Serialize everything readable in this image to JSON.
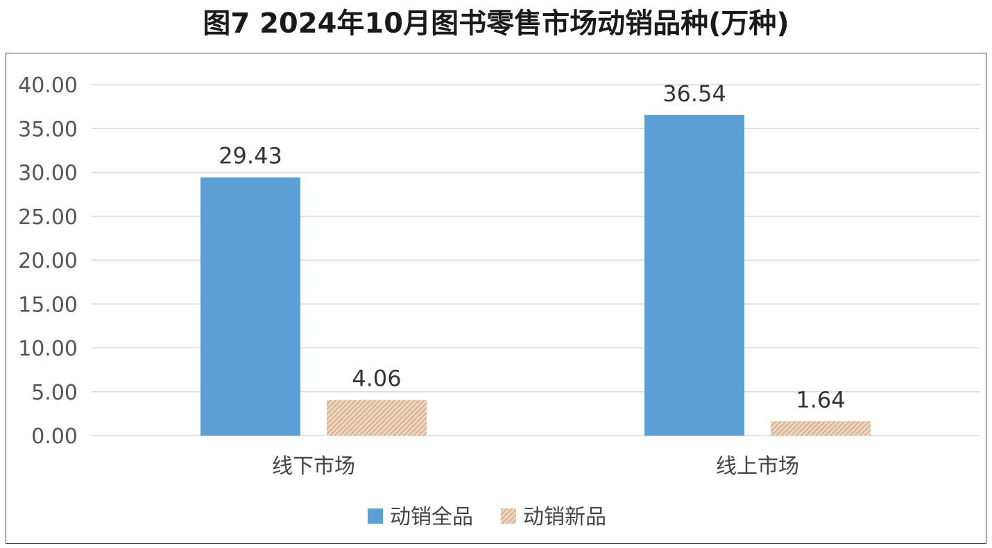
{
  "chart_data": {
    "type": "bar",
    "title": "图7  2024年10月图书零售市场动销品种(万种)",
    "categories": [
      "线下市场",
      "线上市场"
    ],
    "series": [
      {
        "name": "动销全品",
        "values": [
          29.43,
          36.54
        ],
        "labels": [
          "29.43",
          "36.54"
        ],
        "color": "#5b9fd4",
        "pattern": "solid"
      },
      {
        "name": "动销新品",
        "values": [
          4.06,
          1.64
        ],
        "labels": [
          "4.06",
          "1.64"
        ],
        "color": "#d9b08c",
        "pattern": "hatched"
      }
    ],
    "ylim": [
      0,
      40
    ],
    "yticks": [
      "0.00",
      "5.00",
      "10.00",
      "15.00",
      "20.00",
      "25.00",
      "30.00",
      "35.00",
      "40.00"
    ],
    "ytick_values": [
      0,
      5,
      10,
      15,
      20,
      25,
      30,
      35,
      40
    ],
    "grid": true,
    "legend_position": "bottom",
    "xlabel": "",
    "ylabel": ""
  }
}
